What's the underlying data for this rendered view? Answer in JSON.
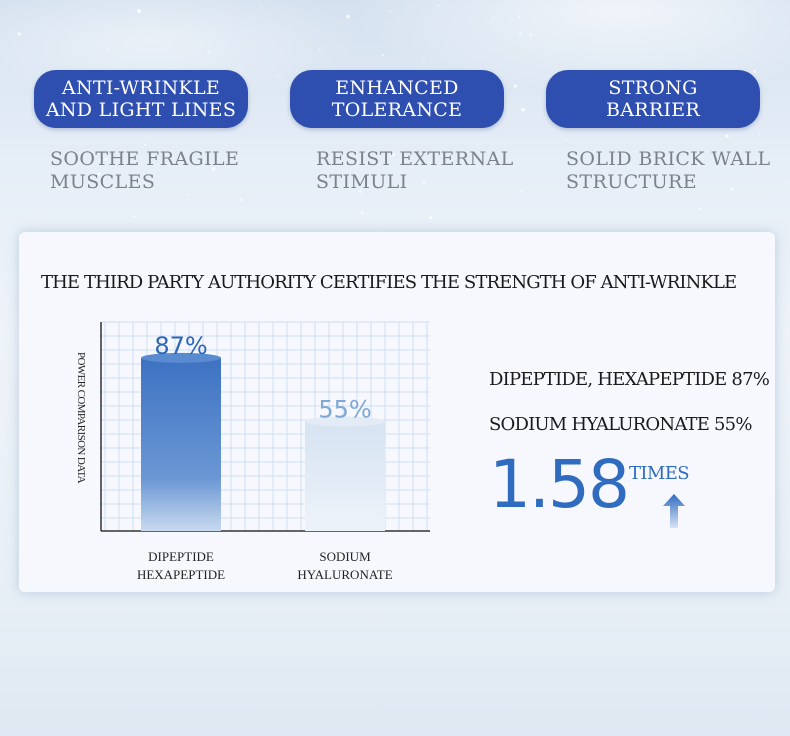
{
  "features": [
    {
      "title_lines": [
        "ANTI-WRINKLE",
        "AND LIGHT LINES"
      ],
      "desc_lines": [
        "SOOTHE FRAGILE",
        "MUSCLES"
      ]
    },
    {
      "title_lines": [
        "ENHANCED",
        "TOLERANCE"
      ],
      "desc_lines": [
        "RESIST EXTERNAL",
        "STIMULI"
      ]
    },
    {
      "title_lines": [
        "STRONG",
        "BARRIER"
      ],
      "desc_lines": [
        "SOLID BRICK WALL",
        "STRUCTURE"
      ]
    }
  ],
  "card": {
    "title": "THE THIRD PARTY AUTHORITY CERTIFIES THE STRENGTH OF ANTI-WRINKLE",
    "stats": [
      "DIPEPTIDE, HEXAPEPTIDE 87%",
      "SODIUM HYALURONATE 55%"
    ],
    "multiplier": "1.58",
    "multiplier_unit": "TIMES"
  },
  "colors": {
    "pill": "#2e4fb0",
    "accent": "#2f6cc0",
    "bar_primary": "#3d72c2",
    "bar_secondary": "#d6e3f2"
  },
  "chart_data": {
    "type": "bar",
    "ylabel": "POWER COMPARISON DATA",
    "categories": [
      [
        "DIPEPTIDE",
        "HEXAPEPTIDE"
      ],
      [
        "SODIUM",
        "HYALURONATE"
      ]
    ],
    "values": [
      87,
      55
    ],
    "data_labels": [
      "87%",
      "55%"
    ],
    "ylim": [
      0,
      100
    ],
    "grid": true
  }
}
